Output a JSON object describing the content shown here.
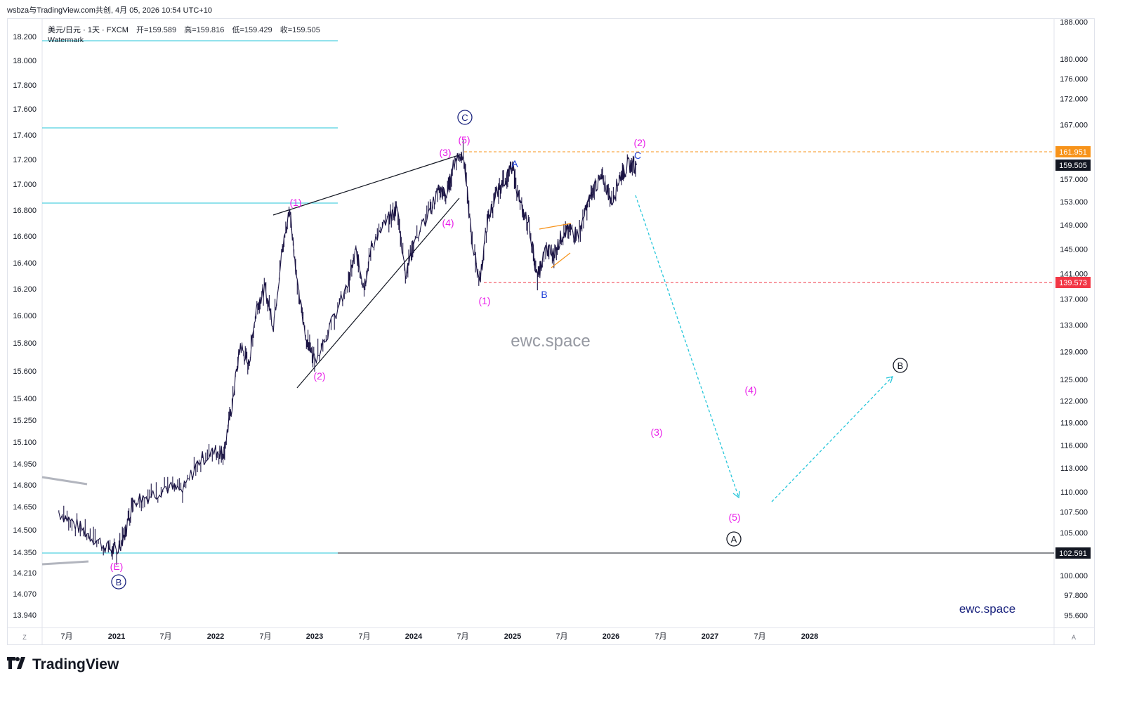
{
  "header": {
    "attribution": "wsbza与TradingView.com共创, 4月 05, 2026 10:54 UTC+10"
  },
  "legend": {
    "symbol": "美元/日元 · 1天 · FXCM",
    "open": "开=159.589",
    "high": "高=159.816",
    "low": "低=159.429",
    "close": "收=159.505",
    "watermark": "Watermark"
  },
  "brand": {
    "name": "TradingView"
  },
  "corners": {
    "left": "Z",
    "right": "A"
  },
  "chart_data": {
    "type": "line",
    "instrument": "美元/日元",
    "timeframe": "1天",
    "source": "FXCM",
    "ohlc_last": {
      "open": 159.589,
      "high": 159.816,
      "low": 159.429,
      "close": 159.505
    },
    "x_ticks": [
      "7月",
      "2021",
      "7月",
      "2022",
      "7月",
      "2023",
      "7月",
      "2024",
      "7月",
      "2025",
      "7月",
      "2026",
      "7月",
      "2027",
      "7月",
      "2028"
    ],
    "right_axis_ticks": [
      "188.000",
      "180.000",
      "176.000",
      "172.000",
      "167.000",
      "161.951",
      "159.505",
      "157.000",
      "153.000",
      "149.000",
      "145.000",
      "141.000",
      "139.573",
      "137.000",
      "133.000",
      "129.000",
      "125.000",
      "122.000",
      "119.000",
      "116.000",
      "113.000",
      "110.000",
      "107.500",
      "105.000",
      "102.591",
      "100.000",
      "97.800",
      "95.600"
    ],
    "left_axis_ticks": [
      "18.200",
      "18.000",
      "17.800",
      "17.600",
      "17.400",
      "17.200",
      "17.000",
      "16.800",
      "16.600",
      "16.400",
      "16.200",
      "16.000",
      "15.800",
      "15.600",
      "15.400",
      "15.250",
      "15.100",
      "14.950",
      "14.800",
      "14.650",
      "14.500",
      "14.350",
      "14.210",
      "14.070",
      "13.940"
    ],
    "price_badges": [
      {
        "value": "161.951",
        "color": "#f7931a"
      },
      {
        "value": "159.505",
        "color": "#131722"
      },
      {
        "value": "139.573",
        "color": "#f23645"
      },
      {
        "value": "102.591",
        "color": "#131722"
      }
    ],
    "price_path": [
      [
        "2020-06",
        107.5
      ],
      [
        "2020-08",
        106.0
      ],
      [
        "2020-10",
        104.5
      ],
      [
        "2020-12",
        103.2
      ],
      [
        "2021-01",
        102.7
      ],
      [
        "2021-02",
        104.8
      ],
      [
        "2021-03",
        109.0
      ],
      [
        "2021-05",
        109.5
      ],
      [
        "2021-07",
        110.6
      ],
      [
        "2021-09",
        110.0
      ],
      [
        "2021-11",
        114.0
      ],
      [
        "2022-01",
        115.2
      ],
      [
        "2022-02",
        115.0
      ],
      [
        "2022-03",
        121.5
      ],
      [
        "2022-04",
        130.0
      ],
      [
        "2022-05",
        127.0
      ],
      [
        "2022-06",
        136.0
      ],
      [
        "2022-07",
        138.5
      ],
      [
        "2022-08",
        133.0
      ],
      [
        "2022-09",
        144.0
      ],
      [
        "2022-10",
        151.9
      ],
      [
        "2022-11",
        138.0
      ],
      [
        "2022-12",
        131.0
      ],
      [
        "2023-01",
        128.0
      ],
      [
        "2023-03",
        133.0
      ],
      [
        "2023-05",
        139.0
      ],
      [
        "2023-06",
        144.5
      ],
      [
        "2023-07",
        139.0
      ],
      [
        "2023-08",
        146.0
      ],
      [
        "2023-10",
        150.0
      ],
      [
        "2023-11",
        151.9
      ],
      [
        "2023-12",
        141.0
      ],
      [
        "2024-01",
        146.0
      ],
      [
        "2024-03",
        151.5
      ],
      [
        "2024-04",
        155.0
      ],
      [
        "2024-05",
        154.0
      ],
      [
        "2024-06",
        160.5
      ],
      [
        "2024-07",
        161.9
      ],
      [
        "2024-08",
        147.0
      ],
      [
        "2024-09",
        139.6
      ],
      [
        "2024-10",
        150.0
      ],
      [
        "2024-11",
        154.0
      ],
      [
        "2024-12",
        157.0
      ],
      [
        "2025-01",
        158.8
      ],
      [
        "2025-02",
        152.0
      ],
      [
        "2025-03",
        149.0
      ],
      [
        "2025-04",
        140.0
      ],
      [
        "2025-05",
        145.0
      ],
      [
        "2025-06",
        144.0
      ],
      [
        "2025-07",
        147.5
      ],
      [
        "2025-08",
        148.0
      ],
      [
        "2025-09",
        147.5
      ],
      [
        "2025-10",
        152.0
      ],
      [
        "2025-11",
        156.0
      ],
      [
        "2025-12",
        157.0
      ],
      [
        "2026-01",
        153.0
      ],
      [
        "2026-02",
        157.5
      ],
      [
        "2026-03",
        159.5
      ],
      [
        "2026-04",
        159.505
      ]
    ],
    "wave_labels": [
      {
        "text": "(E)",
        "color": "#e91ee9"
      },
      {
        "text": "B",
        "circled": true,
        "color": "#1a237e"
      },
      {
        "text": "(1)",
        "color": "#e91ee9"
      },
      {
        "text": "(2)",
        "color": "#e91ee9"
      },
      {
        "text": "(3)",
        "color": "#e91ee9"
      },
      {
        "text": "(4)",
        "color": "#e91ee9"
      },
      {
        "text": "(5)",
        "color": "#e91ee9"
      },
      {
        "text": "C",
        "circled": true,
        "color": "#1a237e"
      },
      {
        "text": "(1)",
        "color": "#e91ee9"
      },
      {
        "text": "A",
        "color": "#1e3fd8"
      },
      {
        "text": "B",
        "color": "#1e3fd8"
      },
      {
        "text": "C",
        "color": "#1e3fd8"
      },
      {
        "text": "(2)",
        "color": "#e91ee9"
      },
      {
        "text": "(3)",
        "color": "#e91ee9"
      },
      {
        "text": "(4)",
        "color": "#e91ee9"
      },
      {
        "text": "(5)",
        "color": "#e91ee9"
      },
      {
        "text": "A",
        "circled": true,
        "color": "#131722"
      },
      {
        "text": "B",
        "circled": true,
        "color": "#131722"
      }
    ],
    "watermark_texts": [
      "ewc.space",
      "ewc.space"
    ]
  }
}
